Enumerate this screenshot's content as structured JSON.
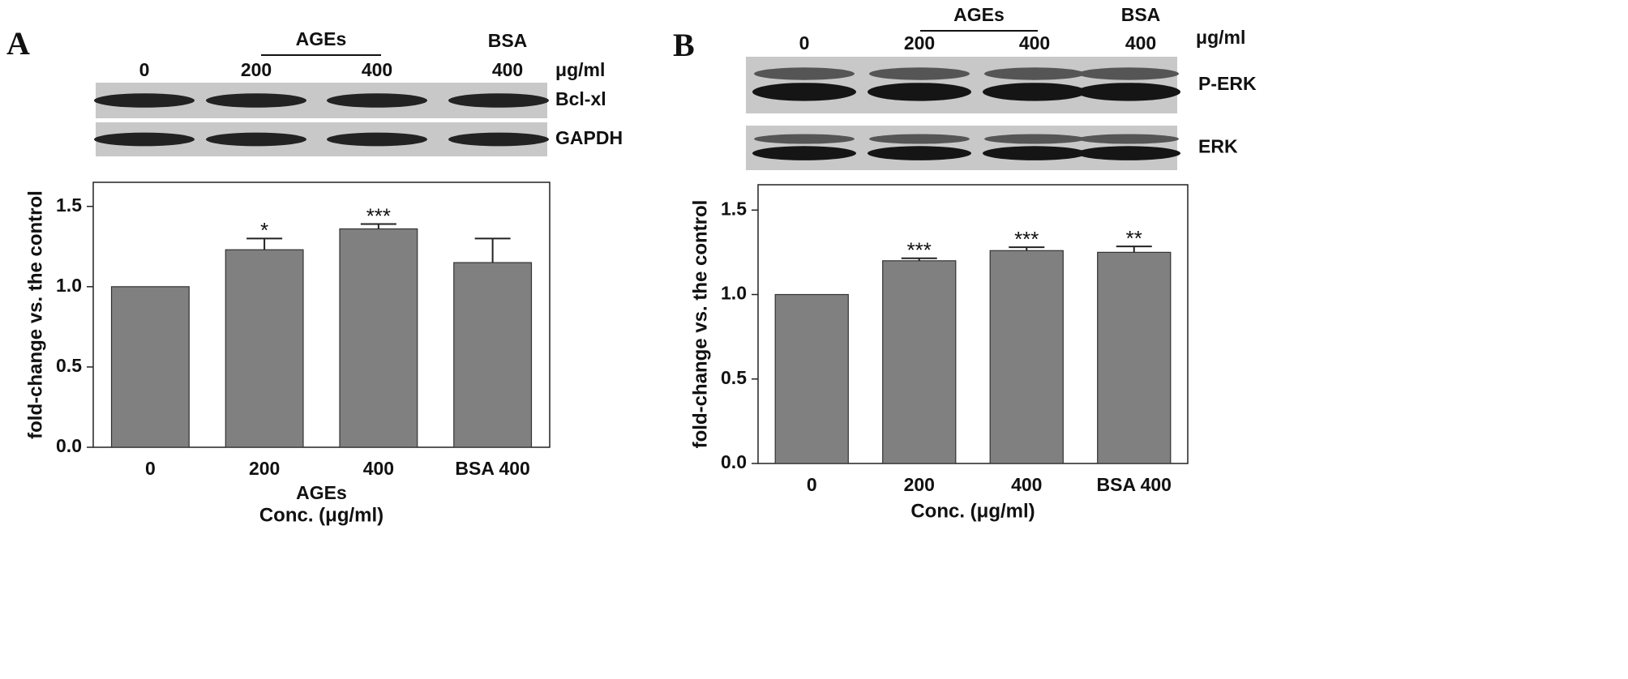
{
  "chart_data": [
    {
      "type": "bar",
      "panel": "A",
      "blot": {
        "group_label": "AGEs",
        "lane_group": "BSA",
        "lanes": [
          "0",
          "200",
          "400",
          "400"
        ],
        "unit": "μg/ml",
        "bands": [
          "Bcl-xl",
          "GAPDH"
        ]
      },
      "ylabel": "fold-change vs. the control",
      "categories": [
        "0",
        "200",
        "400",
        "BSA 400"
      ],
      "values": [
        1.0,
        1.23,
        1.36,
        1.15
      ],
      "errors": [
        null,
        0.07,
        0.03,
        0.15
      ],
      "annotations": [
        null,
        "*",
        "***",
        null
      ],
      "xlabel_group": "AGEs",
      "xlabel": "Conc. (μg/ml)",
      "ylim": [
        0,
        1.65
      ],
      "yticks": [
        {
          "value": 0,
          "label": "0.0"
        },
        {
          "value": 0.5,
          "label": "0.5"
        },
        {
          "value": 1,
          "label": "1.0"
        },
        {
          "value": 1.5,
          "label": "1.5"
        }
      ],
      "color": "#808080"
    },
    {
      "type": "bar",
      "panel": "B",
      "blot": {
        "group_label": "AGEs",
        "lane_group": "BSA",
        "lanes": [
          "0",
          "200",
          "400",
          "400"
        ],
        "unit": "μg/ml",
        "bands": [
          "P-ERK",
          "ERK"
        ]
      },
      "ylabel": "fold-change vs. the control",
      "categories": [
        "0",
        "200",
        "400",
        "BSA 400"
      ],
      "values": [
        1.0,
        1.2,
        1.26,
        1.25
      ],
      "errors": [
        null,
        0.015,
        0.02,
        0.035
      ],
      "annotations": [
        null,
        "***",
        "***",
        "**"
      ],
      "xlabel": "Conc. (μg/ml)",
      "ylim": [
        0,
        1.65
      ],
      "yticks": [
        {
          "value": 0,
          "label": "0.0"
        },
        {
          "value": 0.5,
          "label": "0.5"
        },
        {
          "value": 1,
          "label": "1.0"
        },
        {
          "value": 1.5,
          "label": "1.5"
        }
      ],
      "color": "#808080"
    }
  ]
}
